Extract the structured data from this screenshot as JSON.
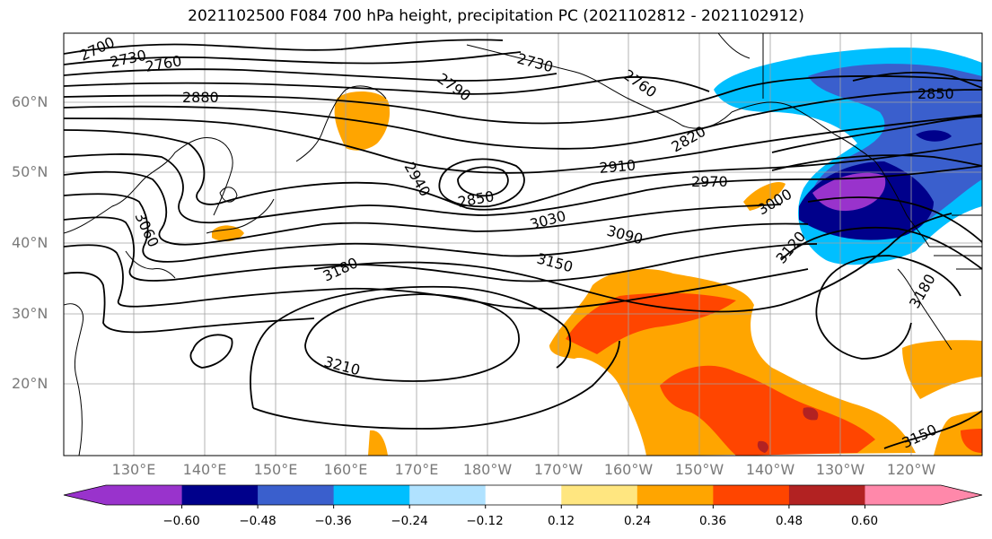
{
  "title": "2021102500 F084 700 hPa height, precipitation PC (2021102812 - 2021102912)",
  "lat_labels": [
    "60°N",
    "50°N",
    "40°N",
    "30°N",
    "20°N"
  ],
  "lon_labels": [
    "130°E",
    "140°E",
    "150°E",
    "160°E",
    "170°E",
    "180°W",
    "170°W",
    "160°W",
    "150°W",
    "140°W",
    "130°W",
    "120°W"
  ],
  "contour_labels": [
    "2700",
    "2730",
    "2760",
    "2730",
    "2790",
    "2760",
    "2880",
    "2820",
    "2850",
    "2910",
    "2940",
    "2850",
    "2970",
    "3000",
    "3030",
    "3090",
    "3060",
    "3120",
    "3150",
    "3180",
    "3180",
    "3210",
    "3150"
  ],
  "colorbar": {
    "tick_labels": [
      "−0.60",
      "−0.48",
      "−0.36",
      "−0.24",
      "−0.12",
      "0.12",
      "0.24",
      "0.36",
      "0.48",
      "0.60"
    ],
    "colors": [
      "#9933cc",
      "#00008b",
      "#3a5fcd",
      "#00bfff",
      "#b0e2ff",
      "#ffffff",
      "#ffe680",
      "#ffa500",
      "#ff4500",
      "#b22222",
      "#ff88aa"
    ]
  },
  "colors": {
    "coast": "#000000",
    "contour": "#000000",
    "grid": "#a0a0a0"
  }
}
